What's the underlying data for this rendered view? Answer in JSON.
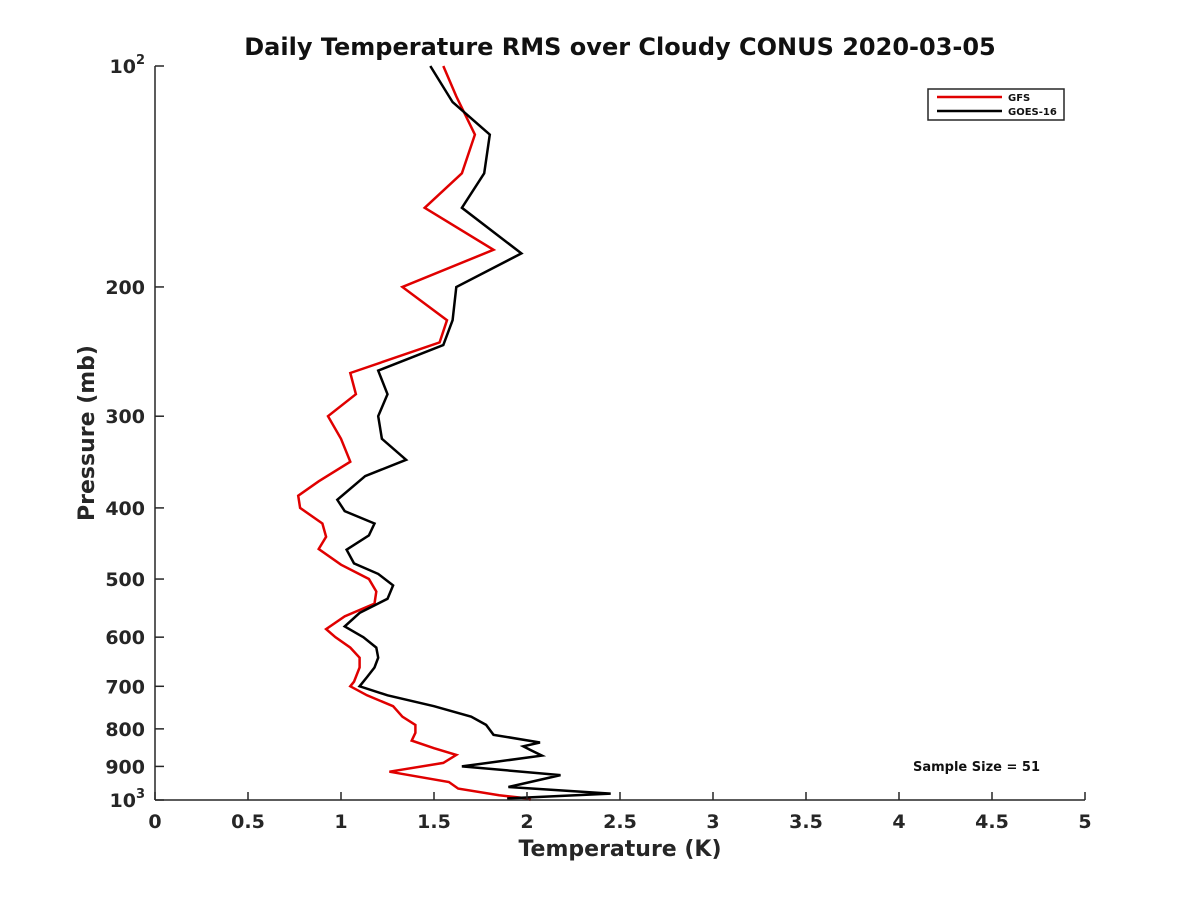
{
  "chart_data": {
    "type": "line",
    "title": "Daily Temperature RMS over Cloudy CONUS 2020-03-05",
    "xlabel": "Temperature (K)",
    "ylabel": "Pressure (mb)",
    "xlim": [
      0,
      5
    ],
    "ylim": [
      100,
      1000
    ],
    "yscale": "log",
    "y_reversed": true,
    "x_ticks": [
      0,
      0.5,
      1,
      1.5,
      2,
      2.5,
      3,
      3.5,
      4,
      4.5,
      5
    ],
    "x_tick_labels": [
      "0",
      "0.5",
      "1",
      "1.5",
      "2",
      "2.5",
      "3",
      "3.5",
      "4",
      "4.5",
      "5"
    ],
    "y_ticks": [
      {
        "value": 100,
        "base": "10",
        "exp": "2"
      },
      {
        "value": 200,
        "label": "200"
      },
      {
        "value": 300,
        "label": "300"
      },
      {
        "value": 400,
        "label": "400"
      },
      {
        "value": 500,
        "label": "500"
      },
      {
        "value": 600,
        "label": "600"
      },
      {
        "value": 700,
        "label": "700"
      },
      {
        "value": 800,
        "label": "800"
      },
      {
        "value": 900,
        "label": "900"
      },
      {
        "value": 1000,
        "base": "10",
        "exp": "3"
      }
    ],
    "legend_position": "top-right",
    "series": [
      {
        "name": "GFS",
        "color": "#e00000",
        "points": [
          [
            1.55,
            100
          ],
          [
            1.62,
            110
          ],
          [
            1.72,
            124
          ],
          [
            1.65,
            140
          ],
          [
            1.45,
            156
          ],
          [
            1.82,
            178
          ],
          [
            1.33,
            200
          ],
          [
            1.57,
            222
          ],
          [
            1.53,
            238
          ],
          [
            1.05,
            262
          ],
          [
            1.08,
            280
          ],
          [
            0.93,
            300
          ],
          [
            1.0,
            322
          ],
          [
            1.05,
            346
          ],
          [
            0.88,
            368
          ],
          [
            0.77,
            385
          ],
          [
            0.78,
            400
          ],
          [
            0.9,
            420
          ],
          [
            0.92,
            438
          ],
          [
            0.88,
            455
          ],
          [
            1.0,
            478
          ],
          [
            1.15,
            500
          ],
          [
            1.19,
            520
          ],
          [
            1.18,
            540
          ],
          [
            1.02,
            562
          ],
          [
            0.92,
            585
          ],
          [
            0.97,
            600
          ],
          [
            1.05,
            620
          ],
          [
            1.1,
            640
          ],
          [
            1.1,
            660
          ],
          [
            1.07,
            690
          ],
          [
            1.05,
            700
          ],
          [
            1.14,
            720
          ],
          [
            1.28,
            745
          ],
          [
            1.33,
            770
          ],
          [
            1.4,
            790
          ],
          [
            1.4,
            810
          ],
          [
            1.38,
            830
          ],
          [
            1.5,
            850
          ],
          [
            1.62,
            868
          ],
          [
            1.55,
            890
          ],
          [
            1.26,
            915
          ],
          [
            1.58,
            945
          ],
          [
            1.63,
            965
          ],
          [
            1.85,
            985
          ],
          [
            2.0,
            995
          ],
          [
            2.02,
            1000
          ]
        ]
      },
      {
        "name": "GOES-16",
        "color": "#000000",
        "points": [
          [
            1.48,
            100
          ],
          [
            1.6,
            112
          ],
          [
            1.8,
            124
          ],
          [
            1.77,
            140
          ],
          [
            1.65,
            156
          ],
          [
            1.97,
            180
          ],
          [
            1.62,
            200
          ],
          [
            1.6,
            222
          ],
          [
            1.55,
            240
          ],
          [
            1.2,
            260
          ],
          [
            1.25,
            280
          ],
          [
            1.2,
            300
          ],
          [
            1.22,
            322
          ],
          [
            1.35,
            344
          ],
          [
            1.13,
            362
          ],
          [
            0.98,
            390
          ],
          [
            1.02,
            404
          ],
          [
            1.18,
            420
          ],
          [
            1.15,
            436
          ],
          [
            1.03,
            456
          ],
          [
            1.07,
            476
          ],
          [
            1.2,
            492
          ],
          [
            1.28,
            510
          ],
          [
            1.25,
            532
          ],
          [
            1.1,
            556
          ],
          [
            1.02,
            580
          ],
          [
            1.12,
            600
          ],
          [
            1.19,
            620
          ],
          [
            1.2,
            640
          ],
          [
            1.18,
            660
          ],
          [
            1.14,
            680
          ],
          [
            1.1,
            700
          ],
          [
            1.25,
            720
          ],
          [
            1.5,
            745
          ],
          [
            1.7,
            770
          ],
          [
            1.78,
            790
          ],
          [
            1.82,
            815
          ],
          [
            2.07,
            835
          ],
          [
            1.98,
            845
          ],
          [
            2.02,
            855
          ],
          [
            2.08,
            870
          ],
          [
            1.65,
            900
          ],
          [
            2.18,
            925
          ],
          [
            1.9,
            960
          ],
          [
            2.45,
            980
          ],
          [
            1.9,
            995
          ],
          [
            1.9,
            1000
          ]
        ]
      }
    ],
    "annotations": [
      {
        "text": "Sample Size = 51"
      }
    ]
  }
}
